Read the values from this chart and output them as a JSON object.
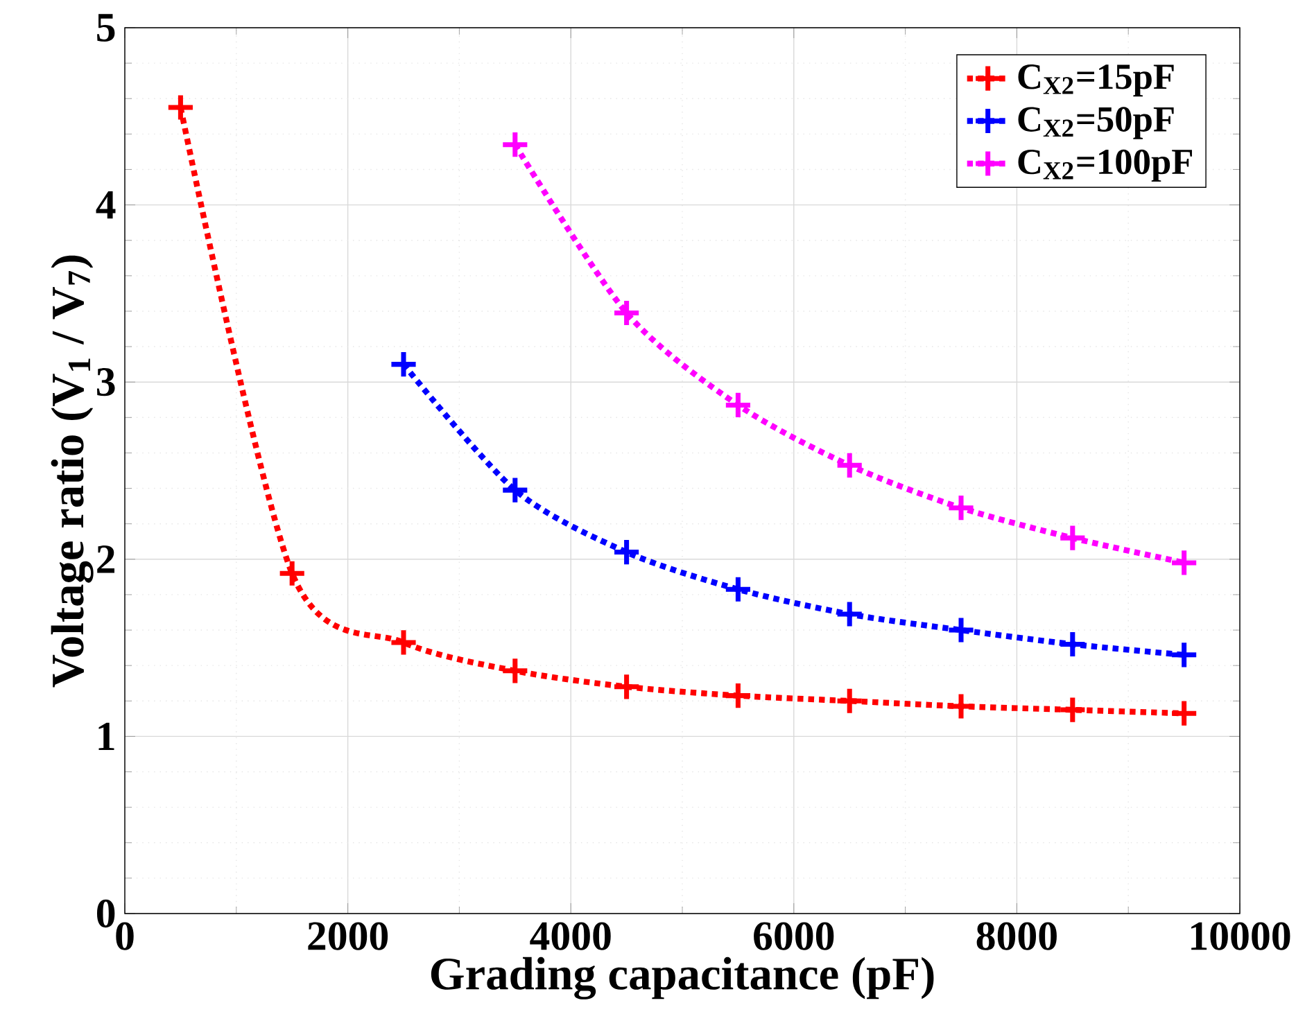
{
  "chart_data": {
    "type": "line",
    "xlabel": "Grading capacitance (pF)",
    "ylabel": "Voltage ratio (V$_{1}$ / V$_{7}$)",
    "xlim": [
      0,
      10000
    ],
    "ylim": [
      0,
      5
    ],
    "xticks": [
      0,
      2000,
      4000,
      6000,
      8000,
      10000
    ],
    "yticks": [
      0,
      1,
      2,
      3,
      4,
      5
    ],
    "grid": true,
    "legend": "top right",
    "marker": "cross",
    "line_style": "dotted",
    "series": [
      {
        "name": "C$_{X2}$=15pF",
        "color": "#ff0000",
        "x": [
          500,
          1500,
          2500,
          3500,
          4500,
          5500,
          6500,
          7500,
          8500,
          9500
        ],
        "values": [
          4.55,
          1.92,
          1.53,
          1.37,
          1.28,
          1.23,
          1.2,
          1.17,
          1.15,
          1.13
        ]
      },
      {
        "name": "C$_{X2}$=50pF",
        "color": "#0000ff",
        "x": [
          2500,
          3500,
          4500,
          5500,
          6500,
          7500,
          8500,
          9500
        ],
        "values": [
          3.1,
          2.39,
          2.04,
          1.83,
          1.69,
          1.6,
          1.52,
          1.46
        ]
      },
      {
        "name": "C$_{X2}$=100pF",
        "color": "#ff00ff",
        "x": [
          3500,
          4500,
          5500,
          6500,
          7500,
          8500,
          9500
        ],
        "values": [
          4.34,
          3.39,
          2.87,
          2.53,
          2.29,
          2.12,
          1.98
        ]
      }
    ]
  }
}
